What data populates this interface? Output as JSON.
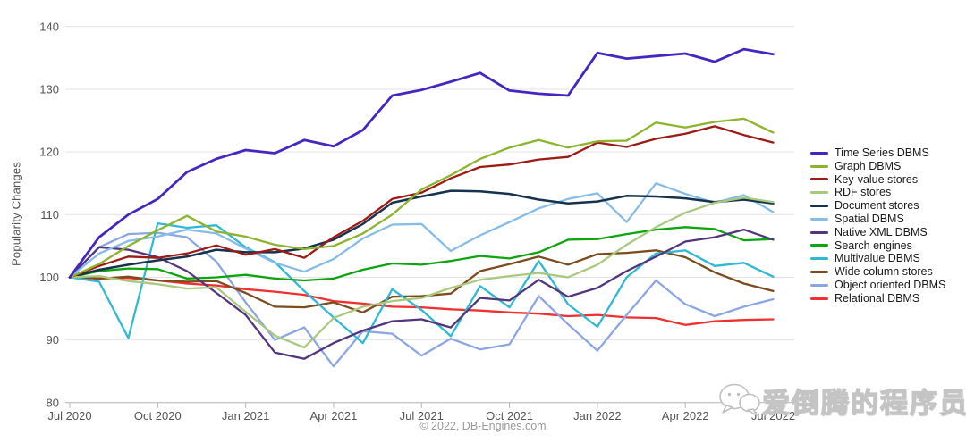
{
  "chart_data": {
    "type": "line",
    "title": "",
    "ylabel": "Popularity Changes",
    "ylim": [
      80,
      140
    ],
    "y_ticks": [
      80,
      90,
      100,
      110,
      120,
      130,
      140
    ],
    "x_tick_labels": [
      "Jul 2020",
      "Oct 2020",
      "Jan 2021",
      "Apr 2021",
      "Jul 2021",
      "Oct 2021",
      "Jan 2022",
      "Apr 2022",
      "Jul 2022"
    ],
    "months": [
      "Jul 2020",
      "Aug 2020",
      "Sep 2020",
      "Oct 2020",
      "Nov 2020",
      "Dec 2020",
      "Jan 2021",
      "Feb 2021",
      "Mar 2021",
      "Apr 2021",
      "May 2021",
      "Jun 2021",
      "Jul 2021",
      "Aug 2021",
      "Sep 2021",
      "Oct 2021",
      "Nov 2021",
      "Dec 2021",
      "Jan 2022",
      "Feb 2022",
      "Mar 2022",
      "Apr 2022",
      "May 2022",
      "Jun 2022",
      "Jul 2022"
    ],
    "grid": true,
    "legend_position": "right",
    "series": [
      {
        "name": "Time Series DBMS",
        "color": "#4527C0",
        "width": 2.8,
        "values": [
          100,
          106.4,
          110.0,
          112.5,
          116.8,
          118.9,
          120.3,
          119.8,
          121.9,
          120.9,
          123.5,
          129.0,
          129.9,
          131.2,
          132.6,
          129.8,
          129.3,
          129.0,
          135.8,
          134.9,
          135.3,
          135.7,
          134.4,
          136.4,
          135.6
        ]
      },
      {
        "name": "Graph DBMS",
        "color": "#8CB42D",
        "width": 2.3,
        "values": [
          100,
          102.1,
          105.0,
          107.5,
          109.8,
          107.3,
          106.5,
          105.2,
          104.5,
          105.0,
          107.0,
          110.0,
          114.0,
          116.3,
          118.9,
          120.7,
          121.9,
          120.7,
          121.7,
          121.8,
          124.7,
          123.9,
          124.8,
          125.3,
          123.1
        ]
      },
      {
        "name": "Key-value stores",
        "color": "#9E1A15",
        "width": 2.3,
        "values": [
          100,
          101.8,
          103.3,
          103.1,
          103.8,
          105.1,
          103.6,
          104.5,
          103.1,
          106.4,
          109.0,
          112.5,
          113.5,
          115.8,
          117.6,
          118.0,
          118.8,
          119.2,
          121.5,
          120.8,
          122.1,
          122.9,
          124.1,
          122.7,
          121.5
        ]
      },
      {
        "name": "RDF stores",
        "color": "#A9CA7E",
        "width": 2.3,
        "values": [
          100,
          100.2,
          99.4,
          98.9,
          98.2,
          98.4,
          94.5,
          90.7,
          88.8,
          93.5,
          95.3,
          96.2,
          96.7,
          98.3,
          99.6,
          100.2,
          100.7,
          100.0,
          102.0,
          105.2,
          108.0,
          110.3,
          111.9,
          112.7,
          112.0
        ]
      },
      {
        "name": "Document stores",
        "color": "#17324C",
        "width": 2.5,
        "values": [
          100,
          101.2,
          102.0,
          102.7,
          103.3,
          104.4,
          104.0,
          104.0,
          104.6,
          106.0,
          108.5,
          111.9,
          112.9,
          113.8,
          113.7,
          113.3,
          112.4,
          111.8,
          112.1,
          113.0,
          112.9,
          112.6,
          112.0,
          112.4,
          111.8
        ]
      },
      {
        "name": "Spatial DBMS",
        "color": "#85BCE8",
        "width": 2.3,
        "values": [
          100,
          103.8,
          105.8,
          106.5,
          107.6,
          107.0,
          104.6,
          102.3,
          100.9,
          102.9,
          106.2,
          108.4,
          108.5,
          104.2,
          106.7,
          108.8,
          111.0,
          112.5,
          113.4,
          108.8,
          115.0,
          113.3,
          111.9,
          113.1,
          110.4
        ]
      },
      {
        "name": "Native XML DBMS",
        "color": "#53357D",
        "width": 2.3,
        "values": [
          100,
          104.8,
          104.4,
          103.2,
          101.0,
          97.5,
          94.0,
          88.0,
          87.0,
          89.5,
          91.5,
          93.0,
          93.3,
          92.0,
          96.7,
          96.3,
          99.6,
          96.9,
          98.3,
          101.0,
          103.3,
          105.7,
          106.4,
          107.6,
          106.0
        ]
      },
      {
        "name": "Search engines",
        "color": "#0DA50D",
        "width": 2.3,
        "values": [
          100,
          101.0,
          101.4,
          101.3,
          99.8,
          100.0,
          100.4,
          99.8,
          99.5,
          99.8,
          101.2,
          102.2,
          102.0,
          102.6,
          103.4,
          103.0,
          104.0,
          106.0,
          106.1,
          106.9,
          107.6,
          108.0,
          107.7,
          105.9,
          106.1
        ]
      },
      {
        "name": "Multivalue DBMS",
        "color": "#30B8D4",
        "width": 2.3,
        "values": [
          100,
          99.3,
          90.3,
          108.6,
          107.9,
          108.3,
          104.8,
          102.4,
          97.8,
          93.6,
          89.5,
          98.1,
          94.8,
          90.6,
          98.6,
          95.2,
          102.6,
          95.7,
          92.1,
          100.0,
          103.8,
          104.3,
          101.8,
          102.3,
          100.1
        ]
      },
      {
        "name": "Wide column stores",
        "color": "#7C4B1E",
        "width": 2.3,
        "values": [
          100,
          99.8,
          100.1,
          99.5,
          99.3,
          99.4,
          97.5,
          95.3,
          95.2,
          96.0,
          94.4,
          96.9,
          97.0,
          97.4,
          101.0,
          102.1,
          103.3,
          102.0,
          103.7,
          103.9,
          104.3,
          103.2,
          100.8,
          99.0,
          97.8
        ]
      },
      {
        "name": "Object oriented DBMS",
        "color": "#8CA6E4",
        "width": 2.3,
        "values": [
          100,
          104.8,
          106.9,
          107.1,
          106.4,
          102.5,
          96.0,
          90.0,
          92.0,
          85.8,
          91.4,
          91.0,
          87.5,
          90.2,
          88.5,
          89.3,
          97.0,
          92.5,
          88.3,
          94.0,
          99.5,
          95.7,
          93.8,
          95.3,
          96.5
        ]
      },
      {
        "name": "Relational DBMS",
        "color": "#F03030",
        "width": 2.3,
        "values": [
          100,
          99.8,
          99.9,
          99.5,
          99.0,
          98.7,
          98.1,
          97.7,
          97.2,
          96.2,
          95.8,
          95.3,
          95.2,
          94.9,
          94.7,
          94.4,
          94.2,
          93.8,
          94.0,
          93.6,
          93.5,
          92.4,
          93.0,
          93.2,
          93.3
        ]
      }
    ]
  },
  "footer": {
    "copyright": "© 2022, DB-Engines.com"
  },
  "watermark": {
    "text": "爱倒腾的程序员",
    "icon": "wechat-icon"
  }
}
